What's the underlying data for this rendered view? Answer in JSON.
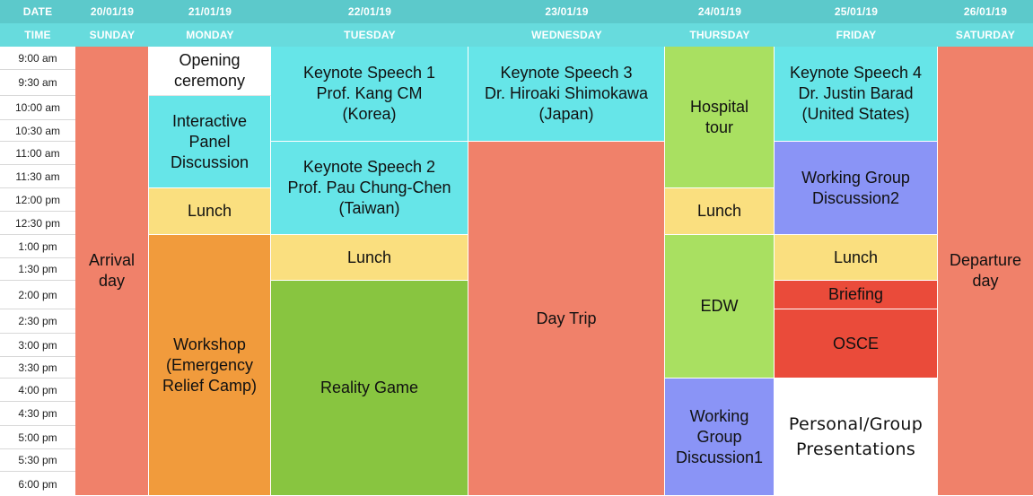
{
  "header": {
    "date_label": "DATE",
    "time_label": "TIME",
    "days": [
      {
        "date": "20/01/19",
        "name": "SUNDAY"
      },
      {
        "date": "21/01/19",
        "name": "MONDAY"
      },
      {
        "date": "22/01/19",
        "name": "TUESDAY"
      },
      {
        "date": "23/01/19",
        "name": "WEDNESDAY"
      },
      {
        "date": "24/01/19",
        "name": "THURSDAY"
      },
      {
        "date": "25/01/19",
        "name": "FRIDAY"
      },
      {
        "date": "26/01/19",
        "name": "SATURDAY"
      }
    ]
  },
  "times": [
    "9:00 am",
    "9:30 am",
    "10:00 am",
    "10:30 am",
    "11:00 am",
    "11:30 am",
    "12:00 pm",
    "12:30 pm",
    "1:00 pm",
    "1:30 pm",
    "2:00 pm",
    "2:30 pm",
    "3:00 pm",
    "3:30 pm",
    "4:00 pm",
    "4:30 pm",
    "5:00 pm",
    "5:30 pm",
    "6:00 pm"
  ],
  "events": {
    "sunday_arrival": "Arrival\nday",
    "monday_opening": "Opening\nceremony",
    "monday_panel": "Interactive\nPanel\nDiscussion",
    "monday_lunch": "Lunch",
    "monday_workshop": "Workshop\n(Emergency\nRelief Camp)",
    "tuesday_keynote1": "Keynote Speech 1\nProf. Kang CM\n(Korea)",
    "tuesday_keynote2": "Keynote Speech 2\nProf. Pau Chung-Chen\n(Taiwan)",
    "tuesday_lunch": "Lunch",
    "tuesday_reality": "Reality Game",
    "wednesday_keynote3": "Keynote Speech 3\nDr. Hiroaki Shimokawa\n(Japan)",
    "wednesday_daytrip": "Day Trip",
    "thursday_hospital": "Hospital\ntour",
    "thursday_lunch": "Lunch",
    "thursday_edw": "EDW",
    "thursday_wg1": "Working\nGroup\nDiscussion1",
    "friday_keynote4": "Keynote Speech 4\nDr. Justin Barad\n(United States)",
    "friday_wg2": "Working Group\nDiscussion2",
    "friday_lunch": "Lunch",
    "friday_briefing": "Briefing",
    "friday_osce": "OSCE",
    "friday_presentations": "Personal/Group\nPresentations",
    "saturday_departure": "Departure\nday"
  },
  "colors": {
    "header_dark": "#5cc9cb",
    "header_light": "#67dbdd",
    "salmon": "#f0816a",
    "cyan": "#66e5e8",
    "yellow": "#fadf7f",
    "orange": "#f19b3c",
    "green": "#88c540",
    "light_green": "#a9e061",
    "periwinkle": "#8a94f6",
    "red": "#ea4b3a",
    "white": "#ffffff"
  }
}
